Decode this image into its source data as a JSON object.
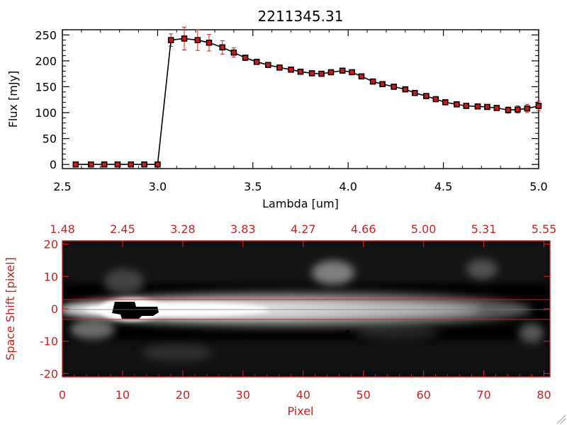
{
  "title": "2211345.31",
  "colors": {
    "black": "#000000",
    "red": "#cc1f1f",
    "marker": "#d01818",
    "background": "#ffffff"
  },
  "chart_data": [
    {
      "type": "line",
      "title": "2211345.31",
      "xlabel": "Lambda [um]",
      "ylabel": "Flux [mJy]",
      "xlim": [
        2.5,
        5.0
      ],
      "ylim": [
        -8,
        260
      ],
      "xticks": [
        "2.5",
        "3.0",
        "3.5",
        "4.0",
        "4.5",
        "5.0"
      ],
      "yticks": [
        "0",
        "50",
        "100",
        "150",
        "200",
        "250"
      ],
      "markers": "filled-square",
      "error_bars": true,
      "grid": false,
      "series": [
        {
          "x": [
            2.57,
            2.65,
            2.72,
            2.79,
            2.86,
            2.93,
            3.0,
            3.07,
            3.14,
            3.21,
            3.27,
            3.34,
            3.4,
            3.46,
            3.52,
            3.58,
            3.64,
            3.7,
            3.75,
            3.81,
            3.86,
            3.91,
            3.97,
            4.02,
            4.07,
            4.13,
            4.18,
            4.24,
            4.3,
            4.35,
            4.41,
            4.46,
            4.51,
            4.57,
            4.62,
            4.68,
            4.73,
            4.78,
            4.84,
            4.89,
            4.94,
            5.0
          ],
          "y": [
            0,
            0,
            0,
            0,
            0,
            0,
            0,
            240,
            243,
            240,
            235,
            226,
            216,
            206,
            198,
            192,
            187,
            183,
            179,
            176,
            175,
            178,
            181,
            178,
            170,
            160,
            155,
            150,
            145,
            138,
            132,
            126,
            120,
            116,
            113,
            112,
            111,
            109,
            105,
            106,
            108,
            113
          ],
          "yerr": [
            0,
            0,
            0,
            0,
            0,
            0,
            0,
            12,
            22,
            20,
            16,
            13,
            9,
            5,
            4,
            4,
            4,
            4,
            4,
            4,
            4,
            4,
            4,
            4,
            4,
            4,
            4,
            4,
            4,
            4,
            4,
            4,
            4,
            4,
            4,
            4,
            4,
            4,
            6,
            7,
            8,
            9
          ]
        }
      ]
    },
    {
      "type": "heatmap",
      "colormap": "grayscale",
      "xlabel": "Pixel",
      "ylabel": "Space Shift [pixel]",
      "xlim": [
        0,
        81
      ],
      "ylim": [
        -21,
        21
      ],
      "xticks": [
        "0",
        "10",
        "20",
        "30",
        "40",
        "50",
        "60",
        "70",
        "80"
      ],
      "yticks": [
        "-20",
        "-10",
        "0",
        "10",
        "20"
      ],
      "top_axis_ticks": [
        "1.48",
        "2.45",
        "3.28",
        "3.83",
        "4.27",
        "4.66",
        "5.00",
        "5.31",
        "5.55"
      ],
      "extraction_window": [
        -3,
        3
      ],
      "center_line": 0
    }
  ]
}
